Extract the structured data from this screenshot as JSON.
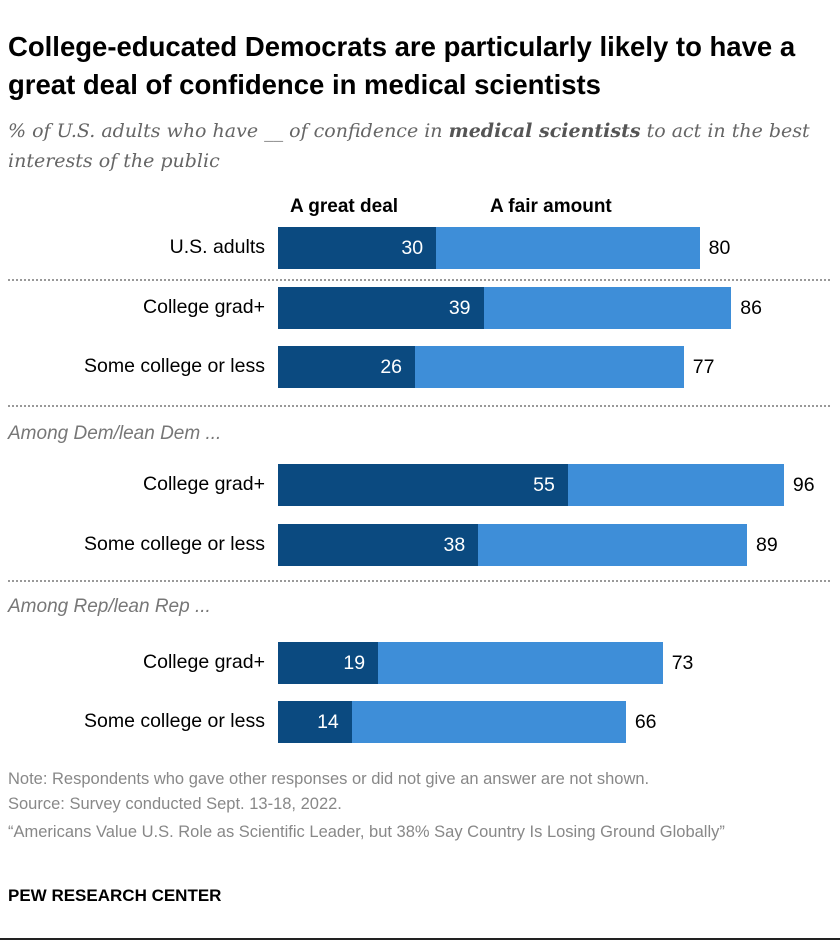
{
  "chart_data": {
    "type": "bar",
    "orientation": "horizontal",
    "stacked": true,
    "title": "College-educated Democrats are particularly likely to have a great deal of confidence in medical scientists",
    "subtitle_parts": [
      "% of U.S. adults who have __ of confidence in ",
      "medical scientists",
      " to act in the best interests of the public"
    ],
    "legend": [
      "A great deal",
      "A fair amount"
    ],
    "colors": {
      "great_deal": "#0b4a80",
      "fair_amount": "#3e8ed8"
    },
    "groups": [
      {
        "label": "",
        "rows": [
          {
            "label": "U.S. adults",
            "great_deal": 30,
            "total": 80
          }
        ]
      },
      {
        "label": "",
        "rows": [
          {
            "label": "College grad+",
            "great_deal": 39,
            "total": 86
          },
          {
            "label": "Some college or less",
            "great_deal": 26,
            "total": 77
          }
        ]
      },
      {
        "label": "Among Dem/lean Dem ...",
        "rows": [
          {
            "label": "College grad+",
            "great_deal": 55,
            "total": 96
          },
          {
            "label": "Some college or less",
            "great_deal": 38,
            "total": 89
          }
        ]
      },
      {
        "label": "Among Rep/lean Rep ...",
        "rows": [
          {
            "label": "College grad+",
            "great_deal": 19,
            "total": 73
          },
          {
            "label": "Some college or less",
            "great_deal": 14,
            "total": 66
          }
        ]
      }
    ],
    "xlim": [
      0,
      100
    ],
    "grid": false
  },
  "footer": {
    "note": "Note: Respondents who gave other responses or did not give an answer are not shown.",
    "source": "Source: Survey conducted Sept. 13-18, 2022.",
    "report": "“Americans Value U.S. Role as Scientific Leader, but 38% Say Country Is Losing Ground Globally”",
    "brand": "PEW RESEARCH CENTER"
  }
}
